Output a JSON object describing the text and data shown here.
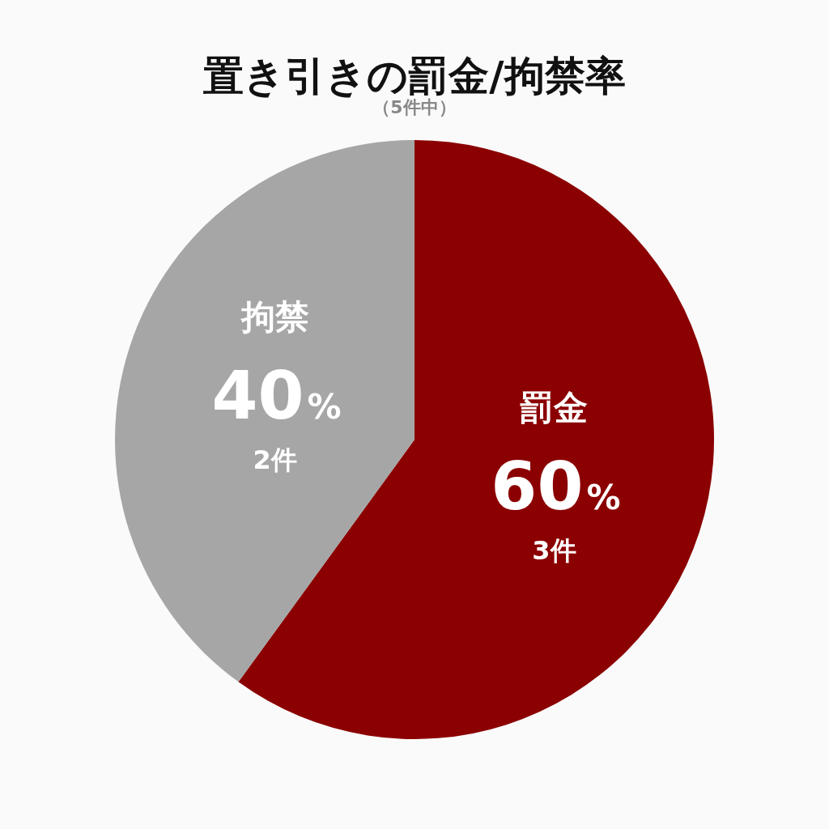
{
  "chart_data": {
    "type": "pie",
    "title": "置き引きの罰金/拘禁率",
    "subtitle": "（5件中）",
    "categories": [
      "罰金",
      "拘禁"
    ],
    "values": [
      60,
      40
    ],
    "colors": [
      "#8b0000",
      "#a6a6a6"
    ],
    "value_labels": [
      "60%",
      "40%"
    ],
    "annotations": [
      {
        "text": "3件",
        "x": "罰金"
      },
      {
        "text": "2件",
        "x": "拘禁"
      }
    ]
  }
}
